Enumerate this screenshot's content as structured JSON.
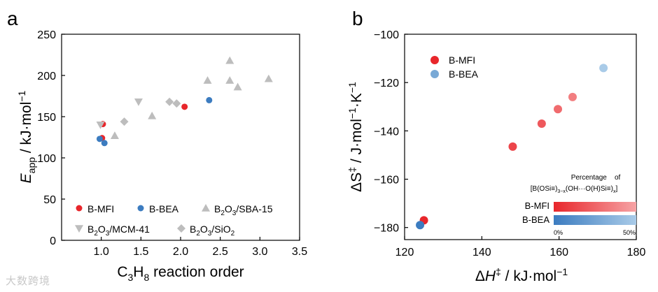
{
  "panels": {
    "a": {
      "label": "a",
      "xlabel": {
        "pre": "C",
        "sub1": "3",
        "mid": "H",
        "sub2": "8",
        "post": " reaction order"
      },
      "ylabel": {
        "main": "E",
        "sub": "app",
        "post": " / kJ·mol",
        "sup": "−1"
      }
    },
    "b": {
      "label": "b",
      "xlabel": {
        "pre": "Δ",
        "ital": "H",
        "sup": "‡",
        "post": " / kJ·mol",
        "sup2": "−1"
      },
      "ylabel": {
        "pre": "ΔS",
        "sup": "‡",
        "mid": " / J·mol",
        "sup2": "−1",
        "mid2": "·K",
        "sup3": "−1"
      },
      "colorbar": {
        "title_line1": "Percentage    of",
        "title_line2": "[B(OSi≡)3−x(OH···O(H)Si≡)x]",
        "row1": "B-MFI",
        "row2": "B-BEA",
        "left_tick": "0%",
        "right_tick": "50%"
      }
    }
  },
  "watermark": "大数跨境",
  "colors": {
    "mfi": "#e8262b",
    "bea": "#3c7cc0",
    "gray": "#bdbdbd",
    "mfi_b_start": "#e8262b",
    "mfi_b_end": "#f6a3a5",
    "bea_b_start": "#3c7cc0",
    "bea_b_end": "#a9cbe8"
  },
  "chart_data": [
    {
      "panel": "a",
      "type": "scatter",
      "xlim": [
        0.5,
        3.5
      ],
      "ylim": [
        0,
        250
      ],
      "xticks": [
        1.0,
        1.5,
        2.0,
        2.5,
        3.0,
        3.5
      ],
      "yticks": [
        0,
        50,
        100,
        150,
        200,
        250
      ],
      "grid": false,
      "legend_position": "bottom",
      "series": [
        {
          "name": "B-MFI",
          "marker": "circle",
          "points": [
            [
              1.02,
              141
            ],
            [
              1.01,
              124
            ],
            [
              2.05,
              162
            ]
          ]
        },
        {
          "name": "B-BEA",
          "marker": "circle",
          "points": [
            [
              0.98,
              123
            ],
            [
              1.04,
              118
            ],
            [
              2.36,
              170
            ]
          ]
        },
        {
          "name": "B2O3/SBA-15",
          "name_parts": [
            "B",
            "2",
            "O",
            "3",
            "/SBA-15"
          ],
          "marker": "triangle-up",
          "points": [
            [
              1.17,
              127
            ],
            [
              1.64,
              151
            ],
            [
              2.34,
              194
            ],
            [
              2.62,
              218
            ],
            [
              2.62,
              194
            ],
            [
              2.72,
              186
            ],
            [
              3.11,
              196
            ]
          ]
        },
        {
          "name": "B2O3/MCM-41",
          "name_parts": [
            "B",
            "2",
            "O",
            "3",
            "/MCM-41"
          ],
          "marker": "triangle-down",
          "points": [
            [
              0.99,
              140
            ],
            [
              1.47,
              168
            ]
          ]
        },
        {
          "name": "B2O3/SiO2",
          "name_parts": [
            "B",
            "2",
            "O",
            "3",
            "/SiO",
            "2",
            "",
            "",
            ""
          ],
          "marker": "diamond",
          "points": [
            [
              1.29,
              144
            ],
            [
              1.86,
              168
            ],
            [
              1.95,
              166
            ]
          ]
        }
      ]
    },
    {
      "panel": "b",
      "type": "scatter",
      "xlim": [
        120,
        180
      ],
      "ylim": [
        -185,
        -100
      ],
      "xticks": [
        120,
        140,
        160,
        180
      ],
      "yticks": [
        -180,
        -160,
        -140,
        -120,
        -100
      ],
      "grid": false,
      "legend_position": "top-left",
      "series": [
        {
          "name": "B-MFI",
          "points": [
            [
              125,
              -177,
              0.0
            ],
            [
              148,
              -146.5,
              0.25
            ],
            [
              155.5,
              -137,
              0.4
            ],
            [
              159.7,
              -131,
              0.55
            ],
            [
              163.5,
              -126,
              0.7
            ]
          ]
        },
        {
          "name": "B-BEA",
          "points": [
            [
              124,
              -179,
              0.0
            ],
            [
              171.5,
              -114,
              1.0
            ]
          ]
        }
      ]
    }
  ]
}
